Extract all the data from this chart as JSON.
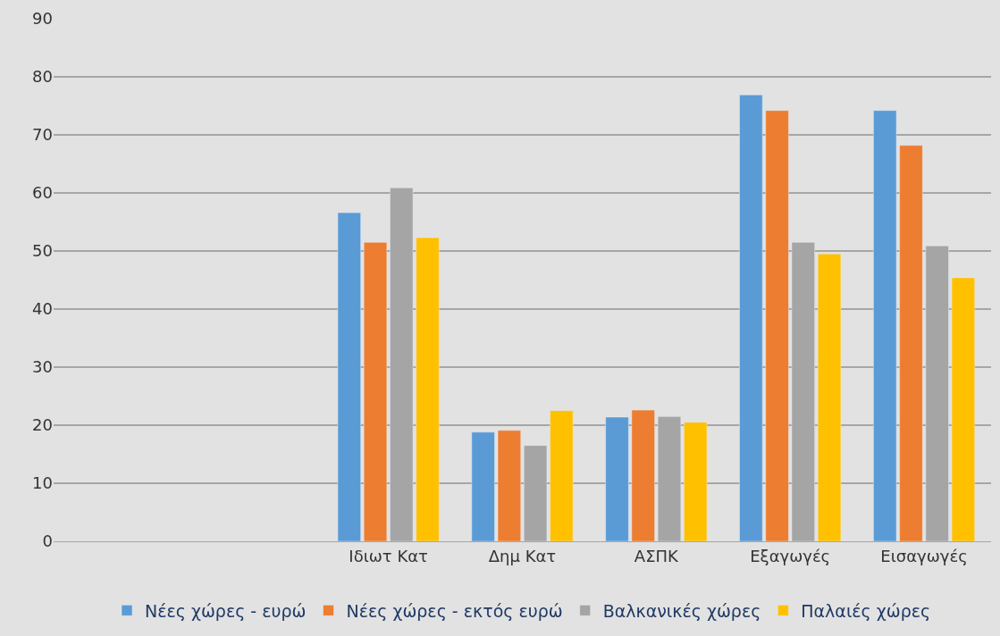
{
  "chart_data": {
    "type": "bar",
    "categories": [
      null,
      null,
      "Ιδιωτ Κατ",
      "Δημ Κατ",
      "ΑΣΠΚ",
      "Εξαγωγές",
      "Εισαγωγές"
    ],
    "series": [
      {
        "name": "Νέες χώρες - ευρώ",
        "color": "#5b9bd5",
        "values": [
          null,
          null,
          56.6,
          18.8,
          21.4,
          76.9,
          74.2
        ]
      },
      {
        "name": "Νέες χώρες - εκτός ευρώ",
        "color": "#ed7d31",
        "values": [
          null,
          null,
          51.5,
          19.1,
          22.6,
          74.2,
          68.2
        ]
      },
      {
        "name": "Βαλκανικές χώρες",
        "color": "#a5a5a5",
        "values": [
          null,
          null,
          60.9,
          16.5,
          21.5,
          51.5,
          50.9
        ]
      },
      {
        "name": "Παλαιές χώρες",
        "color": "#ffc000",
        "values": [
          null,
          null,
          52.3,
          22.5,
          20.5,
          49.5,
          45.4
        ]
      }
    ],
    "ylim": [
      0,
      90
    ],
    "yticks": [
      0,
      10,
      20,
      30,
      40,
      50,
      60,
      70,
      80,
      90
    ],
    "grid": "y",
    "legend": "bottom"
  }
}
